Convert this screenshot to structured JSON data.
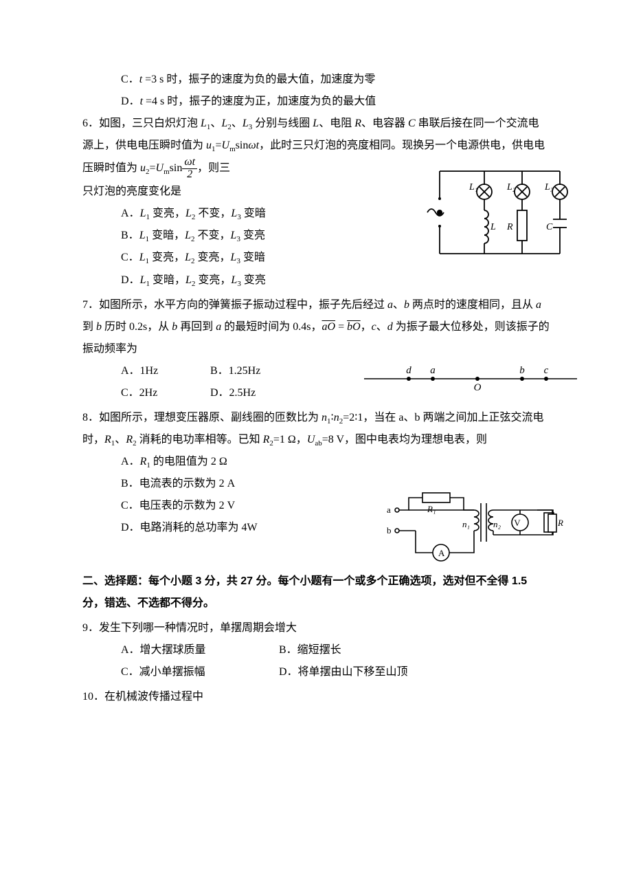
{
  "q5": {
    "optC": "C．t =3 s 时，振子的速度为负的最大值，加速度为零",
    "optD": "D．t =4 s 时，振子的速度为正，加速度为负的最大值"
  },
  "q6": {
    "stem1": "6．如图，三只白炽灯泡 L₁、L₂、L₃ 分别与线圈 L、电阻 R、电容器 C 串联后接在同一个交流电源上，供电电压瞬时值为 u₁=Uₘsinωt，此时三只灯泡的亮度相同。现换另一个电源供电，供电电压瞬时值为 u₂=Uₘsin",
    "stem1_tail": "，则三",
    "stem2": "只灯泡的亮度变化是",
    "frac_num": "ωt",
    "frac_den": "2",
    "optA": "A．L₁ 变亮，L₂ 不变，L₃ 变暗",
    "optB": "B．L₁ 变暗，L₂ 不变，L₃ 变亮",
    "optC": "C．L₁ 变亮，L₂ 变亮，L₃ 变暗",
    "optD": "D．L₁ 变暗，L₂ 变亮，L₃ 变亮",
    "fig": {
      "L1": "L₁",
      "L2": "L₂",
      "L3": "L₃",
      "L": "L",
      "R": "R",
      "C": "C"
    }
  },
  "q7": {
    "stem1": "7．如图所示，水平方向的弹簧振子振动过程中，振子先后经过 a、b 两点时的速度相同，且从 a 到 b 历时 0.2s，从 b 再回到 a 的最短时间为 0.4s，",
    "eq": "aO = bO",
    "stem1_tail": "，c、d",
    "stem2": "为振子最大位移处，则该振子的振动频率为",
    "optA": "A．1Hz",
    "optB": "B．1.25Hz",
    "optC": "C．2Hz",
    "optD": "D．2.5Hz",
    "fig": {
      "d": "d",
      "a": "a",
      "O": "O",
      "b": "b",
      "c": "c"
    }
  },
  "q8": {
    "stem": "8．如图所示，理想变压器原、副线圈的匝数比为 n₁∶n₂=2∶1，当在 a、b 两端之间加上正弦交流电时，R₁、R₂ 消耗的电功率相等。已知 R₂=1 Ω，Uab=8 V，图中电表均为理想电表，则",
    "optA": "A．R₁ 的电阻值为 2 Ω",
    "optB": "B．电流表的示数为 2 A",
    "optC": "C．电压表的示数为 2 V",
    "optD": "D．电路消耗的总功率为 4W",
    "fig": {
      "a": "a",
      "b": "b",
      "R1": "R₁",
      "n1": "n₁",
      "n2": "n₂",
      "V": "V",
      "A": "A",
      "R2": "R₂"
    }
  },
  "section2": "二、选择题：每个小题 3 分，共 27 分。每个小题有一个或多个正确选项，选对但不全得 1.5 分，错选、不选都不得分。",
  "q9": {
    "stem": "9．发生下列哪一种情况时，单摆周期会增大",
    "optA": "A．增大摆球质量",
    "optB": "B．缩短摆长",
    "optC": "C．减小单摆振幅",
    "optD": "D．将单摆由山下移至山顶"
  },
  "q10": {
    "stem": "10．在机械波传播过程中"
  }
}
